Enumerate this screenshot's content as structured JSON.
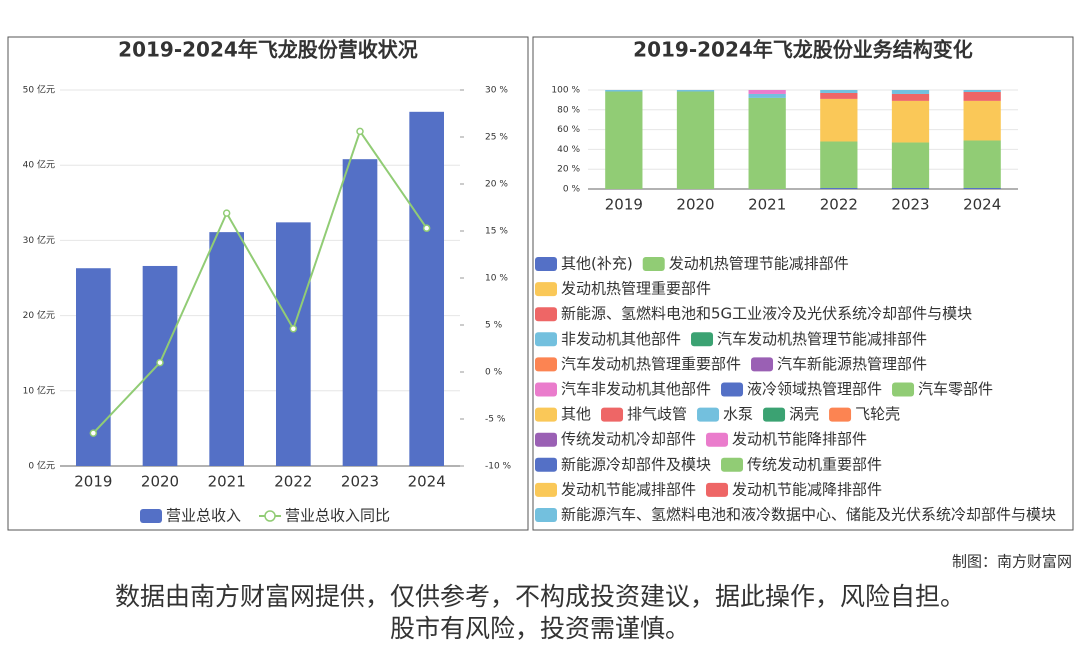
{
  "chart_data": [
    {
      "type": "bar_line",
      "title": "2019-2024年飞龙股份营收状况",
      "categories": [
        "2019",
        "2020",
        "2021",
        "2022",
        "2023",
        "2024"
      ],
      "series": [
        {
          "name": "营业总收入",
          "color": "#5470c6",
          "type": "bar",
          "values": [
            26.3,
            26.6,
            31.1,
            32.4,
            40.8,
            47.1
          ]
        },
        {
          "name": "营业总收入同比",
          "color": "#91cc75",
          "type": "line",
          "axis": "y2",
          "values": [
            -6.5,
            1.0,
            16.9,
            4.6,
            25.6,
            15.3
          ]
        }
      ],
      "ylim": [
        0,
        50
      ],
      "yticks": [
        {
          "value": 0,
          "label": "0 亿元"
        },
        {
          "value": 10,
          "label": "10 亿元"
        },
        {
          "value": 20,
          "label": "20 亿元"
        },
        {
          "value": 30,
          "label": "30 亿元"
        },
        {
          "value": 40,
          "label": "40 亿元"
        },
        {
          "value": 50,
          "label": "50 亿元"
        }
      ],
      "y2lim": [
        -10,
        30
      ],
      "y2ticks": [
        {
          "value": -10,
          "label": "-10 %"
        },
        {
          "value": -5,
          "label": "-5 %"
        },
        {
          "value": 0,
          "label": "0 %"
        },
        {
          "value": 5,
          "label": "5 %"
        },
        {
          "value": 10,
          "label": "10 %"
        },
        {
          "value": 15,
          "label": "15 %"
        },
        {
          "value": 20,
          "label": "20 %"
        },
        {
          "value": 25,
          "label": "25 %"
        },
        {
          "value": 30,
          "label": "30 %"
        }
      ],
      "grid": true,
      "legend": "bottom"
    },
    {
      "type": "stacked_bar",
      "title": "2019-2024年飞龙股份业务结构变化",
      "categories": [
        "2019",
        "2020",
        "2021",
        "2022",
        "2023",
        "2024"
      ],
      "series": [
        {
          "name": "其他(补充)",
          "color": "#5470c6",
          "values": [
            null,
            null,
            null,
            null,
            null,
            null
          ]
        },
        {
          "name": "发动机热管理节能减排部件",
          "color": "#91cc75",
          "values": [
            98.5,
            98.5,
            92,
            null,
            null,
            null
          ]
        },
        {
          "name": "发动机热管理重要部件",
          "color": "#fac858",
          "values": [
            null,
            null,
            null,
            null,
            null,
            null
          ]
        },
        {
          "name": "新能源、氢燃料电池和5G工业液冷及光伏系统冷却部件与模块",
          "color": "#ee6666",
          "values": [
            null,
            null,
            null,
            null,
            null,
            null
          ]
        },
        {
          "name": "非发动机其他部件",
          "color": "#73c0de",
          "values": [
            1.5,
            1.5,
            4,
            null,
            null,
            null
          ]
        },
        {
          "name": "汽车发动机热管理节能减排部件",
          "color": "#3ba272",
          "values": [
            null,
            null,
            null,
            null,
            null,
            null
          ]
        },
        {
          "name": "汽车发动机热管理重要部件",
          "color": "#fc8452",
          "values": [
            null,
            null,
            null,
            null,
            null,
            null
          ]
        },
        {
          "name": "汽车新能源热管理部件",
          "color": "#9a60b4",
          "values": [
            null,
            null,
            null,
            null,
            null,
            null
          ]
        },
        {
          "name": "汽车非发动机其他部件",
          "color": "#ea7ccc",
          "values": [
            null,
            null,
            4,
            null,
            null,
            null
          ]
        },
        {
          "name": "液冷领域热管理部件",
          "color": "#5470c6",
          "values": [
            null,
            null,
            null,
            null,
            null,
            null
          ]
        },
        {
          "name": "汽车零部件",
          "color": "#91cc75",
          "values": [
            null,
            null,
            null,
            null,
            null,
            null
          ]
        },
        {
          "name": "其他",
          "color": "#fac858",
          "values": [
            null,
            null,
            null,
            null,
            null,
            null
          ]
        },
        {
          "name": "排气歧管",
          "color": "#ee6666",
          "values": [
            null,
            null,
            null,
            null,
            null,
            null
          ]
        },
        {
          "name": "水泵",
          "color": "#73c0de",
          "values": [
            null,
            null,
            null,
            null,
            null,
            null
          ]
        },
        {
          "name": "涡壳",
          "color": "#3ba272",
          "values": [
            null,
            null,
            null,
            null,
            null,
            null
          ]
        },
        {
          "name": "飞轮壳",
          "color": "#fc8452",
          "values": [
            null,
            null,
            null,
            null,
            null,
            null
          ]
        },
        {
          "name": "传统发动机冷却部件",
          "color": "#9a60b4",
          "values": [
            null,
            null,
            null,
            null,
            null,
            null
          ]
        },
        {
          "name": "发动机节能降排部件",
          "color": "#ea7ccc",
          "values": [
            null,
            null,
            null,
            null,
            null,
            null
          ]
        },
        {
          "name": "新能源冷却部件及模块",
          "color": "#5470c6",
          "values": [
            null,
            null,
            null,
            1,
            1,
            1
          ]
        },
        {
          "name": "传统发动机重要部件",
          "color": "#91cc75",
          "values": [
            null,
            null,
            null,
            47,
            46,
            48
          ]
        },
        {
          "name": "发动机节能减排部件",
          "color": "#fac858",
          "values": [
            null,
            null,
            null,
            43,
            42,
            40
          ]
        },
        {
          "name": "发动机节能减降排部件",
          "color": "#ee6666",
          "values": [
            null,
            null,
            null,
            6,
            7,
            9
          ]
        },
        {
          "name": "新能源汽车、氢燃料电池和液冷数据中心、储能及光伏系统冷却部件与模块",
          "color": "#73c0de",
          "values": [
            null,
            null,
            null,
            3,
            4,
            2
          ]
        }
      ],
      "ylim": [
        0,
        100
      ],
      "yticks": [
        {
          "value": 0,
          "label": "0 %"
        },
        {
          "value": 20,
          "label": "20 %"
        },
        {
          "value": 40,
          "label": "40 %"
        },
        {
          "value": 60,
          "label": "60 %"
        },
        {
          "value": 80,
          "label": "80 %"
        },
        {
          "value": 100,
          "label": "100 %"
        }
      ],
      "legend": "bottom"
    }
  ],
  "credit": "制图：南方财富网",
  "disclaimer": [
    "数据由南方财富网提供，仅供参考，不构成投资建议，据此操作，风险自担。",
    "股市有风险，投资需谨慎。"
  ]
}
